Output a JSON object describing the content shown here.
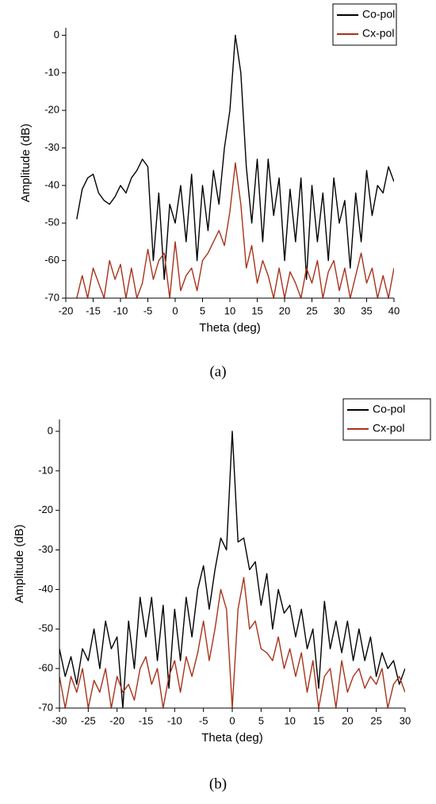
{
  "chart_data": [
    {
      "type": "line",
      "caption": "(a)",
      "x_label": "Theta (deg)",
      "y_label": "Amplitude (dB)",
      "xlim": [
        -20,
        40
      ],
      "ylim": [
        -70,
        2
      ],
      "xticks": [
        -20,
        -15,
        -10,
        -5,
        0,
        5,
        10,
        15,
        20,
        25,
        30,
        35,
        40
      ],
      "yticks": [
        -70,
        -60,
        -50,
        -40,
        -30,
        -20,
        -10,
        0
      ],
      "legend": "upper right",
      "x": [
        -18,
        -17,
        -16,
        -15,
        -14,
        -13,
        -12,
        -11,
        -10,
        -9,
        -8,
        -7,
        -6,
        -5,
        -4,
        -3,
        -2,
        -1,
        0,
        1,
        2,
        3,
        4,
        5,
        6,
        7,
        8,
        9,
        10,
        11,
        12,
        13,
        14,
        15,
        16,
        17,
        18,
        19,
        20,
        21,
        22,
        23,
        24,
        25,
        26,
        27,
        28,
        29,
        30,
        31,
        32,
        33,
        34,
        35,
        36,
        37,
        38,
        39,
        40
      ],
      "series": [
        {
          "name": "Co-pol",
          "color": "#000000",
          "values": [
            -49,
            -41,
            -38,
            -37,
            -42,
            -44,
            -45,
            -43,
            -40,
            -42,
            -38,
            -36,
            -33,
            -35,
            -60,
            -42,
            -65,
            -45,
            -50,
            -40,
            -55,
            -37,
            -60,
            -40,
            -52,
            -36,
            -45,
            -30,
            -20,
            0,
            -10,
            -35,
            -50,
            -33,
            -55,
            -33,
            -48,
            -38,
            -60,
            -41,
            -55,
            -38,
            -65,
            -40,
            -55,
            -42,
            -60,
            -38,
            -50,
            -44,
            -62,
            -42,
            -55,
            -36,
            -48,
            -40,
            -42,
            -35,
            -39
          ]
        },
        {
          "name": "Cx-pol",
          "color": "#a8321a",
          "values": [
            -70,
            -64,
            -70,
            -62,
            -66,
            -70,
            -60,
            -65,
            -61,
            -70,
            -62,
            -70,
            -66,
            -57,
            -65,
            -60,
            -58,
            -70,
            -55,
            -68,
            -64,
            -62,
            -68,
            -60,
            -58,
            -55,
            -52,
            -56,
            -47,
            -34,
            -45,
            -62,
            -56,
            -66,
            -60,
            -64,
            -70,
            -62,
            -70,
            -63,
            -66,
            -70,
            -62,
            -66,
            -60,
            -70,
            -63,
            -60,
            -68,
            -62,
            -70,
            -64,
            -58,
            -66,
            -62,
            -70,
            -64,
            -70,
            -62
          ]
        }
      ]
    },
    {
      "type": "line",
      "caption": "(b)",
      "x_label": "Theta (deg)",
      "y_label": "Amplitude (dB)",
      "xlim": [
        -30,
        30
      ],
      "ylim": [
        -70,
        3
      ],
      "xticks": [
        -30,
        -25,
        -20,
        -15,
        -10,
        -5,
        0,
        5,
        10,
        15,
        20,
        25,
        30
      ],
      "yticks": [
        -70,
        -60,
        -50,
        -40,
        -30,
        -20,
        -10,
        0
      ],
      "legend": "upper right",
      "x": [
        -30,
        -29,
        -28,
        -27,
        -26,
        -25,
        -24,
        -23,
        -22,
        -21,
        -20,
        -19,
        -18,
        -17,
        -16,
        -15,
        -14,
        -13,
        -12,
        -11,
        -10,
        -9,
        -8,
        -7,
        -6,
        -5,
        -4,
        -3,
        -2,
        -1,
        0,
        1,
        2,
        3,
        4,
        5,
        6,
        7,
        8,
        9,
        10,
        11,
        12,
        13,
        14,
        15,
        16,
        17,
        18,
        19,
        20,
        21,
        22,
        23,
        24,
        25,
        26,
        27,
        28,
        29,
        30
      ],
      "series": [
        {
          "name": "Co-pol",
          "color": "#000000",
          "values": [
            -55,
            -62,
            -57,
            -64,
            -55,
            -58,
            -50,
            -60,
            -48,
            -55,
            -52,
            -70,
            -48,
            -60,
            -42,
            -52,
            -42,
            -58,
            -44,
            -65,
            -45,
            -58,
            -42,
            -52,
            -40,
            -34,
            -45,
            -35,
            -27,
            -30,
            0,
            -28,
            -27,
            -35,
            -33,
            -44,
            -36,
            -50,
            -40,
            -46,
            -44,
            -52,
            -45,
            -55,
            -50,
            -65,
            -43,
            -55,
            -48,
            -56,
            -48,
            -58,
            -50,
            -58,
            -52,
            -62,
            -56,
            -60,
            -58,
            -64,
            -60
          ]
        },
        {
          "name": "Cx-pol",
          "color": "#a8321a",
          "values": [
            -62,
            -70,
            -62,
            -66,
            -60,
            -70,
            -63,
            -66,
            -60,
            -70,
            -62,
            -66,
            -64,
            -68,
            -60,
            -57,
            -64,
            -60,
            -70,
            -62,
            -58,
            -66,
            -57,
            -62,
            -56,
            -48,
            -58,
            -50,
            -40,
            -45,
            -70,
            -45,
            -37,
            -50,
            -48,
            -55,
            -56,
            -58,
            -52,
            -60,
            -55,
            -62,
            -56,
            -66,
            -58,
            -70,
            -62,
            -60,
            -70,
            -58,
            -66,
            -62,
            -60,
            -65,
            -62,
            -64,
            -60,
            -70,
            -64,
            -62,
            -66
          ]
        }
      ]
    }
  ]
}
